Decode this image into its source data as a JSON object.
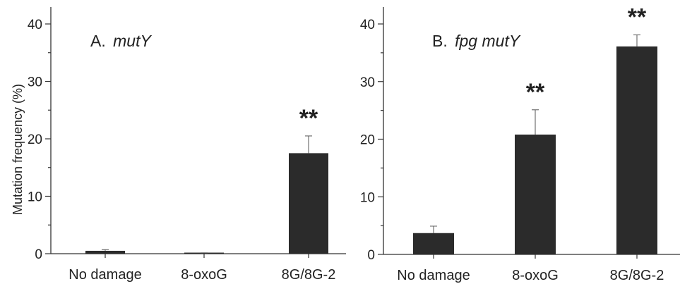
{
  "chart_data": [
    {
      "type": "bar",
      "panel": "A",
      "title_prefix": "A.",
      "title_gene": "mutY",
      "ylabel": "Mutation frequency (%)",
      "xlabel": "",
      "ylim": [
        0,
        42
      ],
      "yticks": [
        0,
        10,
        20,
        30,
        40
      ],
      "categories": [
        "No damage",
        "8-oxoG",
        "8G/8G-2"
      ],
      "values": [
        0.5,
        0.1,
        17.5
      ],
      "errors": [
        0.2,
        0.05,
        3.0
      ],
      "annotations": [
        "",
        "",
        "**"
      ],
      "bar_color": "#2b2b2b"
    },
    {
      "type": "bar",
      "panel": "B",
      "title_prefix": "B.",
      "title_gene": "fpg mutY",
      "ylabel": "",
      "xlabel": "",
      "ylim": [
        0,
        42
      ],
      "yticks": [
        0,
        10,
        20,
        30,
        40
      ],
      "categories": [
        "No damage",
        "8-oxoG",
        "8G/8G-2"
      ],
      "values": [
        3.7,
        20.8,
        36.1
      ],
      "errors": [
        1.2,
        4.3,
        2.0
      ],
      "annotations": [
        "",
        "**",
        "**"
      ],
      "bar_color": "#2b2b2b"
    }
  ]
}
